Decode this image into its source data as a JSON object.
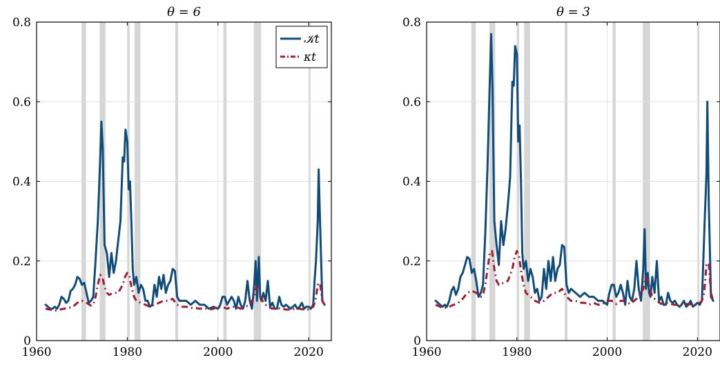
{
  "chart_data": [
    {
      "type": "line",
      "title": "θ = 6",
      "xlim": [
        1960,
        2025
      ],
      "ylim": [
        0,
        0.8
      ],
      "xticks": [
        "1960",
        "1980",
        "2000",
        "2020"
      ],
      "yticks": [
        "0",
        "0.2",
        "0.4",
        "0.6",
        "0.8"
      ],
      "grid": true,
      "legend": {
        "placement": "top-right",
        "entries": [
          "𝒦t",
          "κt"
        ]
      },
      "recession_bands": [
        [
          1969.9,
          1970.9
        ],
        [
          1973.9,
          1975.2
        ],
        [
          1980.0,
          1980.5
        ],
        [
          1981.6,
          1982.9
        ],
        [
          1990.6,
          1991.2
        ],
        [
          2001.2,
          2001.9
        ],
        [
          2007.9,
          2009.5
        ],
        [
          2020.1,
          2020.4
        ]
      ],
      "series": [
        {
          "name": "𝒦t",
          "color": "#0f4c7a",
          "style": "solid",
          "x": [
            1962,
            1962.5,
            1963,
            1963.5,
            1964,
            1964.5,
            1965,
            1965.5,
            1966,
            1966.5,
            1967,
            1967.5,
            1968,
            1968.5,
            1969,
            1969.5,
            1970,
            1970.5,
            1971,
            1971.5,
            1972,
            1972.5,
            1973,
            1973.5,
            1974,
            1974.3,
            1974.6,
            1975,
            1975.5,
            1976,
            1976.5,
            1977,
            1977.5,
            1978,
            1978.5,
            1979,
            1979.3,
            1979.6,
            1980,
            1980.3,
            1980.6,
            1980.9,
            1981.2,
            1981.5,
            1982,
            1982.5,
            1983,
            1983.5,
            1984,
            1984.5,
            1985,
            1985.5,
            1986,
            1986.5,
            1987,
            1987.5,
            1988,
            1988.5,
            1989,
            1989.5,
            1990,
            1990.5,
            1991,
            1991.5,
            1992,
            1993,
            1994,
            1995,
            1996,
            1997,
            1998,
            1999,
            2000,
            2000.5,
            2001,
            2001.5,
            2002,
            2002.5,
            2003,
            2003.5,
            2004,
            2004.5,
            2005,
            2005.5,
            2006,
            2006.5,
            2007,
            2007.5,
            2008,
            2008.3,
            2008.6,
            2009,
            2009.3,
            2009.6,
            2010,
            2010.5,
            2011,
            2011.5,
            2012,
            2012.5,
            2013,
            2013.5,
            2014,
            2014.5,
            2015,
            2015.5,
            2016,
            2016.5,
            2017,
            2017.5,
            2018,
            2018.5,
            2019,
            2019.5,
            2020,
            2020.5,
            2021,
            2021.3,
            2021.6,
            2022,
            2022.2,
            2022.5,
            2023,
            2023.5
          ],
          "values": [
            0.09,
            0.085,
            0.08,
            0.08,
            0.085,
            0.08,
            0.09,
            0.11,
            0.105,
            0.095,
            0.1,
            0.125,
            0.13,
            0.14,
            0.16,
            0.155,
            0.14,
            0.145,
            0.12,
            0.095,
            0.1,
            0.11,
            0.2,
            0.3,
            0.45,
            0.55,
            0.48,
            0.24,
            0.22,
            0.16,
            0.22,
            0.17,
            0.2,
            0.25,
            0.3,
            0.46,
            0.45,
            0.53,
            0.5,
            0.38,
            0.4,
            0.3,
            0.18,
            0.14,
            0.16,
            0.12,
            0.14,
            0.13,
            0.1,
            0.1,
            0.085,
            0.09,
            0.14,
            0.11,
            0.16,
            0.13,
            0.165,
            0.12,
            0.14,
            0.15,
            0.18,
            0.175,
            0.11,
            0.1,
            0.1,
            0.1,
            0.09,
            0.1,
            0.09,
            0.09,
            0.08,
            0.085,
            0.08,
            0.09,
            0.11,
            0.11,
            0.09,
            0.1,
            0.11,
            0.1,
            0.08,
            0.11,
            0.09,
            0.08,
            0.1,
            0.15,
            0.1,
            0.08,
            0.14,
            0.2,
            0.1,
            0.21,
            0.11,
            0.1,
            0.12,
            0.1,
            0.15,
            0.085,
            0.095,
            0.08,
            0.08,
            0.11,
            0.09,
            0.085,
            0.09,
            0.085,
            0.08,
            0.085,
            0.09,
            0.08,
            0.085,
            0.095,
            0.08,
            0.085,
            0.085,
            0.08,
            0.09,
            0.15,
            0.2,
            0.3,
            0.43,
            0.3,
            0.1,
            0.09
          ]
        },
        {
          "name": "κt",
          "color": "#a51c30",
          "style": "dashdot",
          "x": [
            1962,
            1963,
            1964,
            1965,
            1966,
            1967,
            1968,
            1969,
            1970,
            1971,
            1972,
            1972.5,
            1973,
            1973.5,
            1974,
            1974.5,
            1975,
            1975.5,
            1976,
            1977,
            1978,
            1979,
            1979.5,
            1980,
            1980.5,
            1981,
            1981.5,
            1982,
            1983,
            1984,
            1985,
            1986,
            1987,
            1988,
            1989,
            1990,
            1991,
            1992,
            1993,
            1994,
            1995,
            1996,
            1997,
            1998,
            1999,
            2000,
            2001,
            2002,
            2003,
            2004,
            2005,
            2006,
            2007,
            2008,
            2008.5,
            2009,
            2009.5,
            2010,
            2011,
            2012,
            2013,
            2014,
            2015,
            2016,
            2017,
            2018,
            2019,
            2020,
            2020.5,
            2021,
            2021.5,
            2022,
            2022.5,
            2023,
            2023.5
          ],
          "values": [
            0.08,
            0.078,
            0.075,
            0.078,
            0.08,
            0.082,
            0.085,
            0.095,
            0.1,
            0.095,
            0.088,
            0.09,
            0.11,
            0.14,
            0.165,
            0.16,
            0.135,
            0.12,
            0.115,
            0.12,
            0.12,
            0.14,
            0.16,
            0.17,
            0.16,
            0.13,
            0.11,
            0.1,
            0.095,
            0.09,
            0.085,
            0.09,
            0.095,
            0.1,
            0.1,
            0.105,
            0.09,
            0.085,
            0.085,
            0.082,
            0.082,
            0.08,
            0.082,
            0.078,
            0.08,
            0.085,
            0.085,
            0.08,
            0.085,
            0.085,
            0.08,
            0.085,
            0.09,
            0.11,
            0.135,
            0.13,
            0.11,
            0.095,
            0.085,
            0.08,
            0.082,
            0.08,
            0.078,
            0.078,
            0.08,
            0.08,
            0.078,
            0.078,
            0.082,
            0.085,
            0.1,
            0.14,
            0.145,
            0.1,
            0.09
          ]
        }
      ]
    },
    {
      "type": "line",
      "title": "θ = 3",
      "xlim": [
        1960,
        2025
      ],
      "ylim": [
        0,
        0.8
      ],
      "xticks": [
        "1960",
        "1980",
        "2000",
        "2020"
      ],
      "yticks": [
        "0",
        "0.2",
        "0.4",
        "0.6",
        "0.8"
      ],
      "grid": true,
      "recession_bands": [
        [
          1969.9,
          1970.9
        ],
        [
          1973.9,
          1975.2
        ],
        [
          1980.0,
          1980.5
        ],
        [
          1981.6,
          1982.9
        ],
        [
          1990.6,
          1991.2
        ],
        [
          2001.2,
          2001.9
        ],
        [
          2007.9,
          2009.5
        ],
        [
          2020.1,
          2020.4
        ]
      ],
      "series": [
        {
          "name": "𝒦t",
          "color": "#0f4c7a",
          "style": "solid",
          "x": [
            1962,
            1962.5,
            1963,
            1963.5,
            1964,
            1964.5,
            1965,
            1965.5,
            1966,
            1966.5,
            1967,
            1967.5,
            1968,
            1968.5,
            1969,
            1969.5,
            1970,
            1970.5,
            1971,
            1971.5,
            1972,
            1972.5,
            1973,
            1973.5,
            1974,
            1974.3,
            1974.6,
            1975,
            1975.5,
            1976,
            1976.5,
            1977,
            1977.5,
            1978,
            1978.5,
            1979,
            1979.3,
            1979.6,
            1980,
            1980.3,
            1980.6,
            1980.9,
            1981.2,
            1981.5,
            1982,
            1982.5,
            1983,
            1983.5,
            1984,
            1984.5,
            1985,
            1985.5,
            1986,
            1986.5,
            1987,
            1987.5,
            1988,
            1988.5,
            1989,
            1989.5,
            1990,
            1990.5,
            1991,
            1991.5,
            1992,
            1993,
            1994,
            1995,
            1996,
            1997,
            1998,
            1999,
            2000,
            2000.5,
            2001,
            2001.5,
            2002,
            2002.5,
            2003,
            2003.5,
            2004,
            2004.5,
            2005,
            2005.5,
            2006,
            2006.5,
            2007,
            2007.5,
            2008,
            2008.3,
            2008.6,
            2009,
            2009.3,
            2009.6,
            2010,
            2010.5,
            2011,
            2011.5,
            2012,
            2012.5,
            2013,
            2013.5,
            2014,
            2014.5,
            2015,
            2015.5,
            2016,
            2016.5,
            2017,
            2017.5,
            2018,
            2018.5,
            2019,
            2019.5,
            2020,
            2020.5,
            2021,
            2021.3,
            2021.6,
            2022,
            2022.2,
            2022.5,
            2023,
            2023.5
          ],
          "values": [
            0.1,
            0.095,
            0.09,
            0.085,
            0.09,
            0.085,
            0.1,
            0.125,
            0.135,
            0.115,
            0.13,
            0.16,
            0.17,
            0.19,
            0.21,
            0.205,
            0.17,
            0.18,
            0.15,
            0.11,
            0.12,
            0.14,
            0.27,
            0.44,
            0.65,
            0.77,
            0.63,
            0.3,
            0.24,
            0.19,
            0.3,
            0.24,
            0.28,
            0.34,
            0.41,
            0.65,
            0.64,
            0.74,
            0.72,
            0.5,
            0.54,
            0.4,
            0.22,
            0.18,
            0.2,
            0.15,
            0.18,
            0.16,
            0.12,
            0.13,
            0.1,
            0.11,
            0.18,
            0.13,
            0.2,
            0.15,
            0.21,
            0.15,
            0.18,
            0.19,
            0.24,
            0.235,
            0.14,
            0.12,
            0.13,
            0.12,
            0.11,
            0.12,
            0.11,
            0.11,
            0.1,
            0.1,
            0.09,
            0.12,
            0.14,
            0.14,
            0.11,
            0.12,
            0.14,
            0.12,
            0.09,
            0.15,
            0.11,
            0.1,
            0.13,
            0.2,
            0.13,
            0.1,
            0.18,
            0.28,
            0.13,
            0.17,
            0.12,
            0.11,
            0.16,
            0.12,
            0.2,
            0.1,
            0.11,
            0.09,
            0.09,
            0.12,
            0.1,
            0.095,
            0.1,
            0.09,
            0.085,
            0.09,
            0.1,
            0.085,
            0.09,
            0.1,
            0.085,
            0.09,
            0.095,
            0.09,
            0.1,
            0.2,
            0.3,
            0.42,
            0.6,
            0.35,
            0.11,
            0.1
          ]
        },
        {
          "name": "κt",
          "color": "#a51c30",
          "style": "dashdot",
          "x": [
            1962,
            1963,
            1964,
            1965,
            1966,
            1967,
            1968,
            1969,
            1970,
            1971,
            1972,
            1972.5,
            1973,
            1973.5,
            1974,
            1974.5,
            1975,
            1975.5,
            1976,
            1977,
            1978,
            1979,
            1979.5,
            1980,
            1980.5,
            1981,
            1981.5,
            1982,
            1983,
            1984,
            1985,
            1986,
            1987,
            1988,
            1989,
            1990,
            1991,
            1992,
            1993,
            1994,
            1995,
            1996,
            1997,
            1998,
            1999,
            2000,
            2001,
            2002,
            2003,
            2004,
            2005,
            2006,
            2007,
            2008,
            2008.5,
            2009,
            2009.5,
            2010,
            2011,
            2012,
            2013,
            2014,
            2015,
            2016,
            2017,
            2018,
            2019,
            2020,
            2020.5,
            2021,
            2021.5,
            2022,
            2022.5,
            2023,
            2023.5
          ],
          "values": [
            0.09,
            0.085,
            0.082,
            0.085,
            0.09,
            0.095,
            0.105,
            0.12,
            0.125,
            0.12,
            0.11,
            0.115,
            0.14,
            0.18,
            0.22,
            0.225,
            0.18,
            0.15,
            0.14,
            0.145,
            0.15,
            0.18,
            0.21,
            0.225,
            0.21,
            0.17,
            0.14,
            0.12,
            0.11,
            0.1,
            0.095,
            0.1,
            0.11,
            0.12,
            0.12,
            0.13,
            0.11,
            0.1,
            0.1,
            0.095,
            0.095,
            0.09,
            0.095,
            0.09,
            0.092,
            0.1,
            0.1,
            0.092,
            0.1,
            0.1,
            0.092,
            0.1,
            0.11,
            0.13,
            0.16,
            0.15,
            0.13,
            0.11,
            0.1,
            0.092,
            0.095,
            0.092,
            0.09,
            0.09,
            0.092,
            0.092,
            0.09,
            0.09,
            0.095,
            0.1,
            0.12,
            0.19,
            0.195,
            0.12,
            0.1
          ]
        }
      ]
    }
  ]
}
